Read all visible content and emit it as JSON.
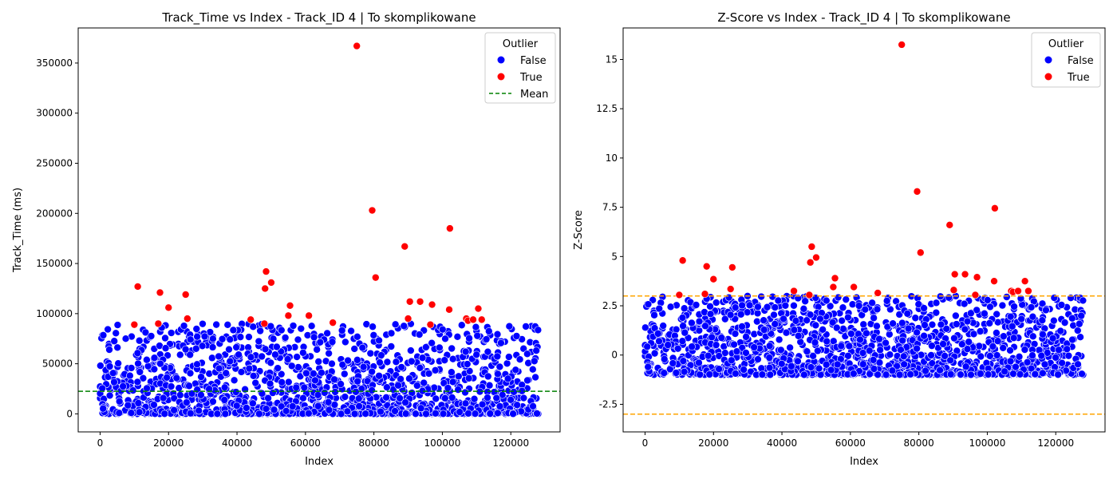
{
  "chart_data": [
    {
      "type": "scatter",
      "title": "Track_Time vs Index - Track_ID 4 | To skomplikowane",
      "xlabel": "Index",
      "ylabel": "Track_Time (ms)",
      "xlim": [
        -6400,
        134400
      ],
      "ylim": [
        -18000,
        385000
      ],
      "xticks": [
        0,
        20000,
        40000,
        60000,
        80000,
        100000,
        120000
      ],
      "yticks": [
        0,
        50000,
        100000,
        150000,
        200000,
        250000,
        300000,
        350000
      ],
      "grid": false,
      "legend": {
        "title": "Outlier",
        "placement": "top-right",
        "entries": [
          "False",
          "True",
          "Mean"
        ]
      },
      "reference_lines": [
        {
          "name": "Mean",
          "y": 22500,
          "color": "#008000",
          "style": "dashed"
        }
      ],
      "series": [
        {
          "name": "False",
          "color": "#0000ff",
          "summary": {
            "count_estimate": 1500,
            "x_range": [
              0,
              128000
            ],
            "y_range": [
              0,
              90000
            ]
          }
        },
        {
          "name": "True",
          "color": "#ff0000",
          "points": [
            [
              10000,
              89000
            ],
            [
              11000,
              127000
            ],
            [
              17000,
              90000
            ],
            [
              17500,
              121000
            ],
            [
              20000,
              106000
            ],
            [
              25000,
              119000
            ],
            [
              25500,
              95000
            ],
            [
              44000,
              94000
            ],
            [
              48000,
              90000
            ],
            [
              48200,
              125000
            ],
            [
              48500,
              142000
            ],
            [
              50000,
              131000
            ],
            [
              55000,
              98000
            ],
            [
              55500,
              108000
            ],
            [
              61000,
              98000
            ],
            [
              68000,
              91000
            ],
            [
              75000,
              367000
            ],
            [
              79500,
              203000
            ],
            [
              80500,
              136000
            ],
            [
              89000,
              167000
            ],
            [
              90000,
              95000
            ],
            [
              90500,
              112000
            ],
            [
              93500,
              112000
            ],
            [
              96500,
              89000
            ],
            [
              97000,
              109000
            ],
            [
              102000,
              104000
            ],
            [
              102200,
              185000
            ],
            [
              107000,
              95000
            ],
            [
              107500,
              93000
            ],
            [
              109000,
              94000
            ],
            [
              110500,
              105000
            ],
            [
              111500,
              94000
            ]
          ]
        }
      ]
    },
    {
      "type": "scatter",
      "title": "Z-Score vs Index - Track_ID 4 | To skomplikowane",
      "xlabel": "Index",
      "ylabel": "Z-Score",
      "xlim": [
        -6400,
        134400
      ],
      "ylim": [
        -3.9,
        16.6
      ],
      "xticks": [
        0,
        20000,
        40000,
        60000,
        80000,
        100000,
        120000
      ],
      "yticks": [
        -2.5,
        0.0,
        2.5,
        5.0,
        7.5,
        10.0,
        12.5,
        15.0
      ],
      "grid": false,
      "legend": {
        "title": "Outlier",
        "placement": "top-right",
        "entries": [
          "False",
          "True"
        ]
      },
      "reference_lines": [
        {
          "y": 3,
          "color": "#ffa500",
          "style": "dashed"
        },
        {
          "y": -3,
          "color": "#ffa500",
          "style": "dashed"
        }
      ],
      "series": [
        {
          "name": "False",
          "color": "#0000ff",
          "summary": {
            "count_estimate": 1500,
            "x_range": [
              0,
              128000
            ],
            "y_range": [
              -1.0,
              3.0
            ]
          }
        },
        {
          "name": "True",
          "color": "#ff0000",
          "points": [
            [
              10000,
              3.05
            ],
            [
              11000,
              4.8
            ],
            [
              17500,
              3.1
            ],
            [
              18000,
              4.5
            ],
            [
              20000,
              3.85
            ],
            [
              25000,
              3.35
            ],
            [
              25500,
              4.45
            ],
            [
              43500,
              3.25
            ],
            [
              48000,
              3.05
            ],
            [
              48300,
              4.7
            ],
            [
              48700,
              5.5
            ],
            [
              50000,
              4.95
            ],
            [
              55000,
              3.45
            ],
            [
              55500,
              3.9
            ],
            [
              61000,
              3.45
            ],
            [
              68000,
              3.15
            ],
            [
              75000,
              15.75
            ],
            [
              79500,
              8.3
            ],
            [
              80500,
              5.2
            ],
            [
              89000,
              6.6
            ],
            [
              90200,
              3.3
            ],
            [
              90500,
              4.1
            ],
            [
              93500,
              4.1
            ],
            [
              96500,
              3.05
            ],
            [
              97000,
              3.95
            ],
            [
              102000,
              3.75
            ],
            [
              102200,
              7.45
            ],
            [
              107000,
              3.25
            ],
            [
              107500,
              3.2
            ],
            [
              109000,
              3.25
            ],
            [
              111000,
              3.75
            ],
            [
              112000,
              3.25
            ]
          ]
        }
      ]
    }
  ]
}
